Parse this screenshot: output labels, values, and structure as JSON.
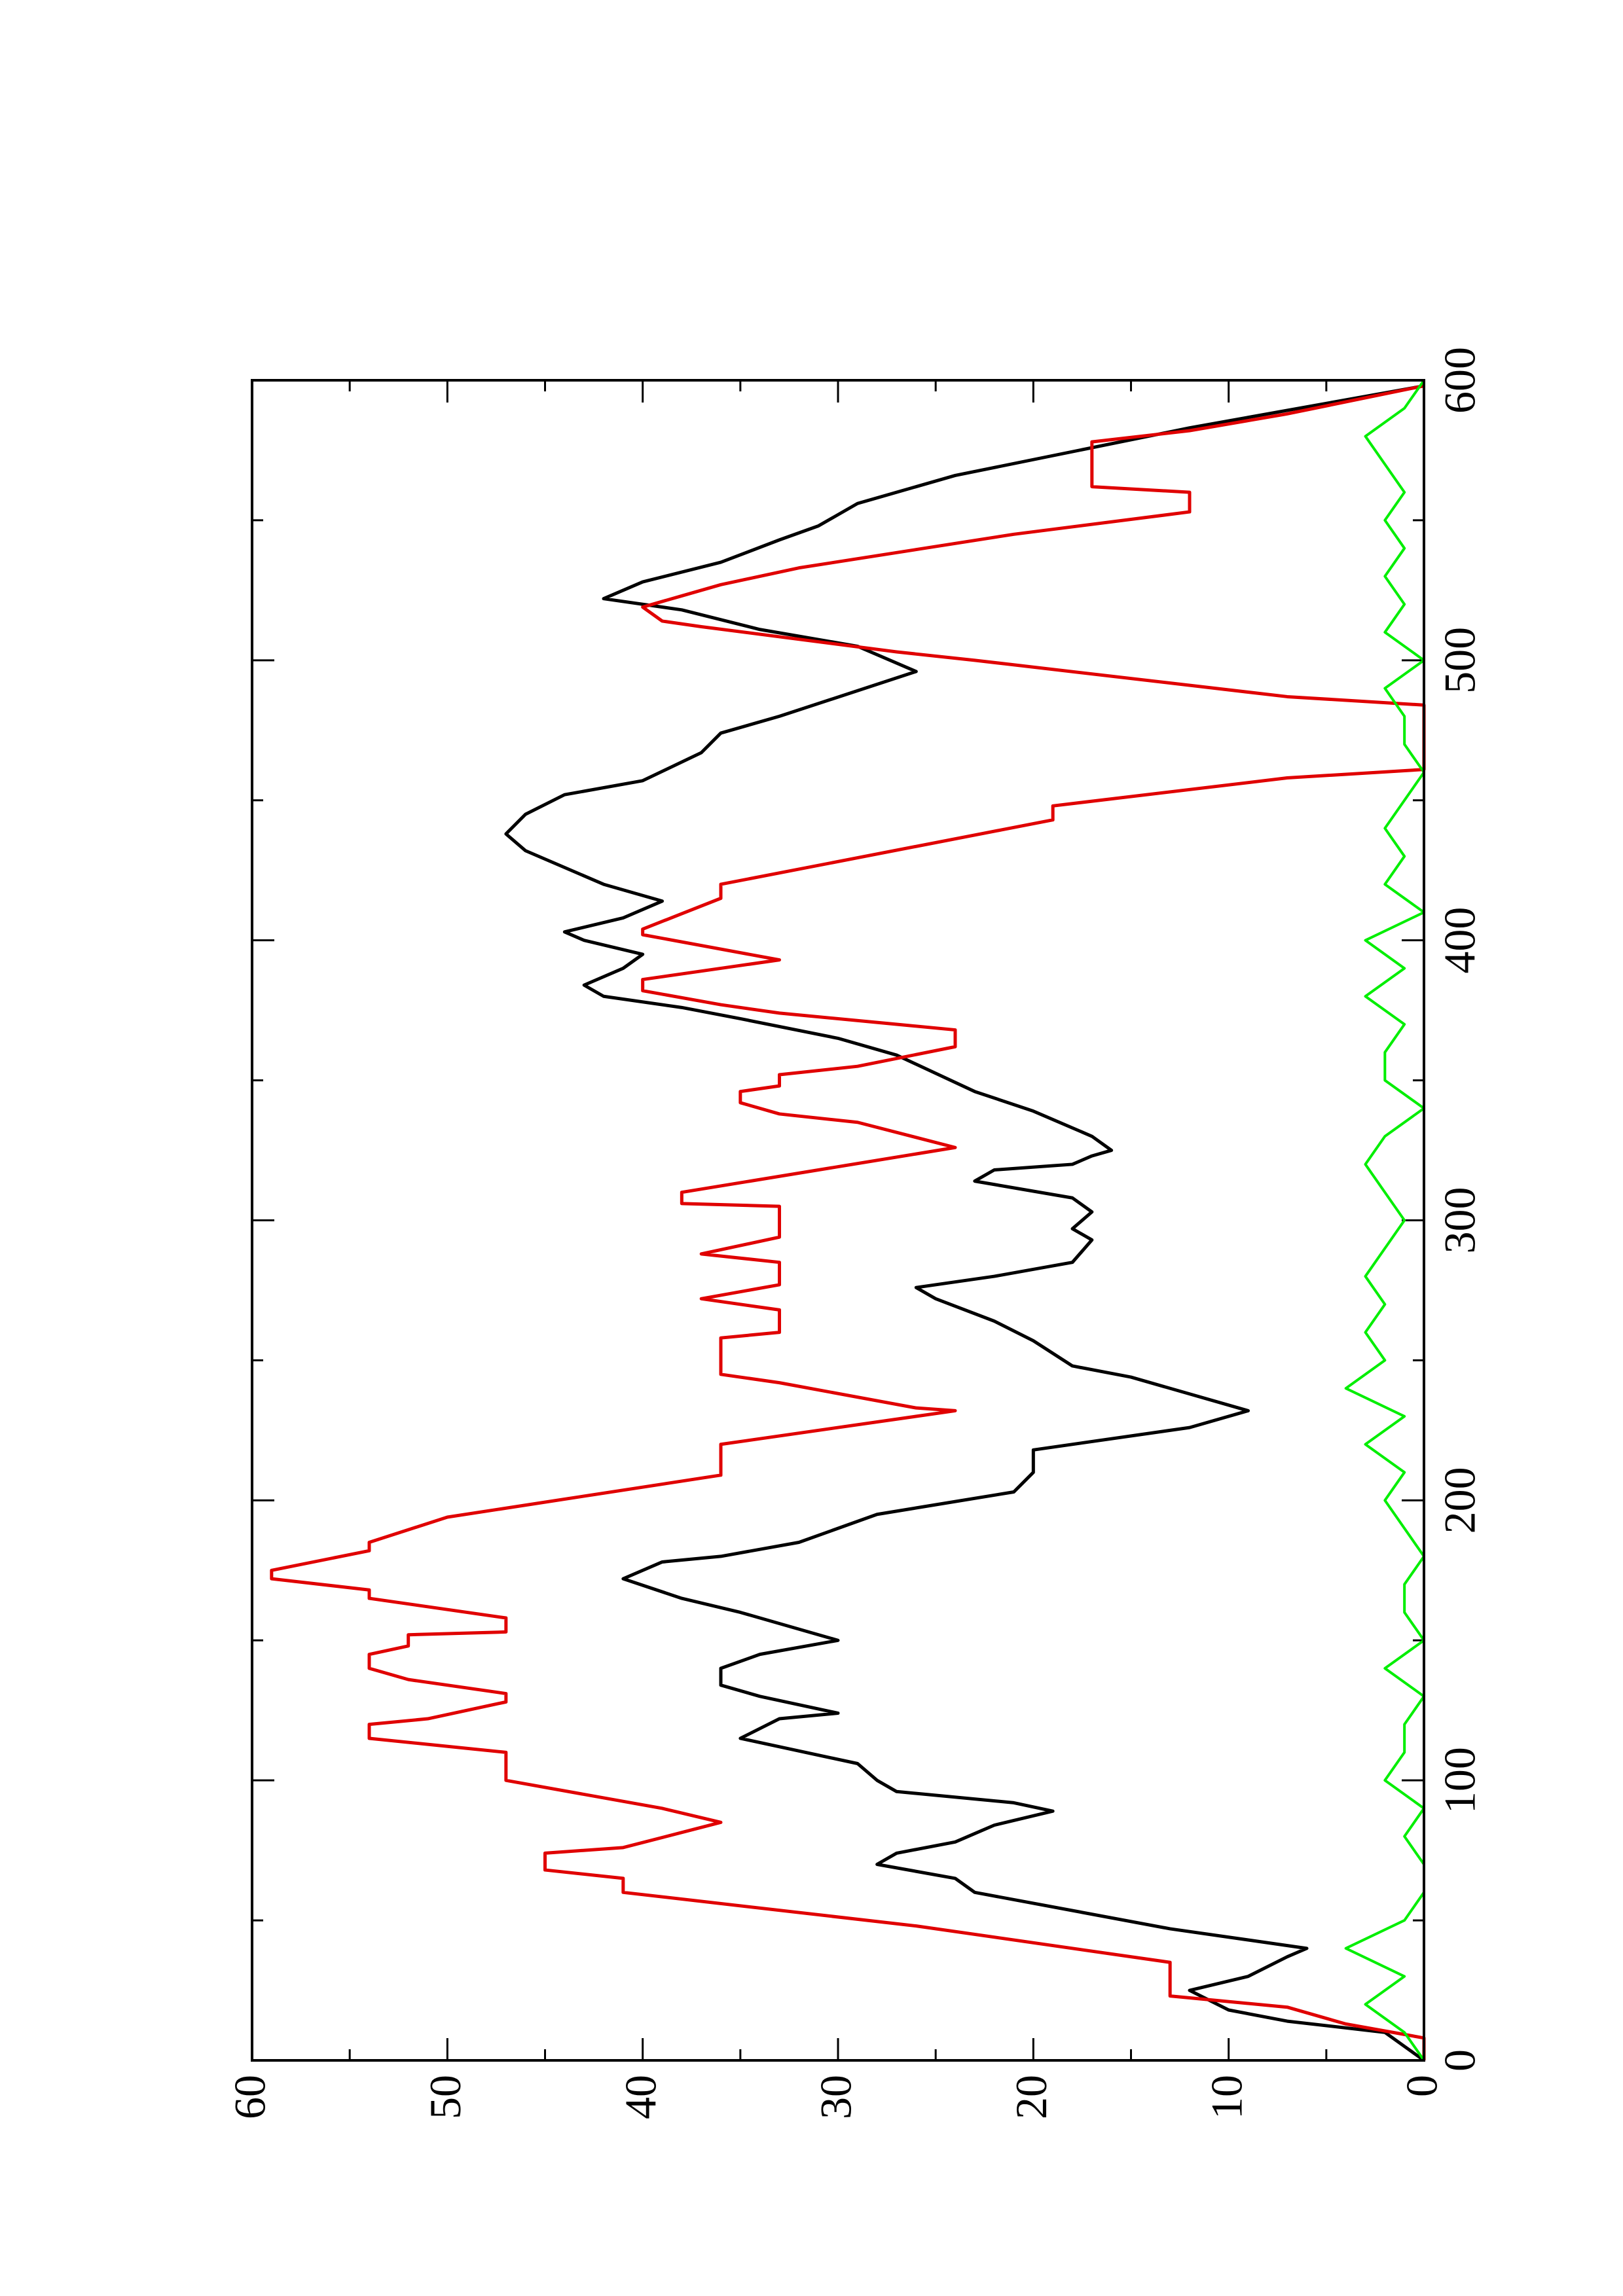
{
  "chart_data": {
    "type": "line",
    "xlim": [
      0,
      600
    ],
    "xticks": [
      0,
      100,
      200,
      300,
      400,
      500,
      600
    ],
    "ylim": [
      0,
      60
    ],
    "yticks": [
      0,
      10,
      20,
      30,
      40,
      50,
      60
    ],
    "series": [
      {
        "color": "#000000",
        "x": [
          0,
          5,
          10,
          14,
          18,
          25,
          30,
          37,
          40,
          43,
          47,
          60,
          65,
          70,
          74,
          78,
          84,
          89,
          92,
          96,
          100,
          106,
          112,
          115,
          122,
          124,
          130,
          134,
          140,
          145,
          150,
          160,
          165,
          172,
          178,
          180,
          185,
          195,
          203,
          210,
          218,
          226,
          232,
          238,
          244,
          248,
          257,
          264,
          272,
          276,
          280,
          285,
          293,
          297,
          303,
          308,
          314,
          318,
          320,
          323,
          325,
          330,
          339,
          346,
          359,
          365,
          372,
          376,
          380,
          384,
          390,
          395,
          400,
          403,
          408,
          414,
          420,
          432,
          438,
          445,
          452,
          457,
          467,
          474,
          480,
          496,
          505,
          511,
          518,
          522,
          528,
          535,
          543,
          548,
          552,
          556,
          566,
          583,
          598
        ],
        "values": [
          0,
          1,
          2,
          7,
          10,
          12,
          9,
          7,
          6,
          9,
          13,
          23,
          24,
          28,
          27,
          24,
          22,
          19,
          21,
          27,
          28,
          29,
          33,
          35,
          33,
          30,
          34,
          36,
          36,
          34,
          30,
          35,
          38,
          41,
          39,
          36,
          32,
          28,
          21,
          20,
          20,
          12,
          9,
          12,
          15,
          18,
          20,
          22,
          25,
          26,
          22,
          18,
          17,
          18,
          17,
          18,
          23,
          22,
          18,
          17,
          16,
          17,
          20,
          23,
          27,
          30,
          35,
          38,
          42,
          43,
          41,
          40,
          43,
          44,
          41,
          39,
          42,
          46,
          47,
          46,
          44,
          40,
          37,
          36,
          33,
          26,
          29,
          34,
          38,
          42,
          40,
          36,
          33,
          31,
          30,
          29,
          24,
          12,
          0
        ]
      },
      {
        "color": "#e00000",
        "x": [
          0,
          8,
          13,
          19,
          23,
          35,
          48,
          60,
          65,
          68,
          74,
          76,
          85,
          90,
          100,
          110,
          115,
          120,
          122,
          128,
          131,
          136,
          140,
          145,
          148,
          152,
          153,
          158,
          165,
          168,
          172,
          175,
          182,
          185,
          194,
          209,
          220,
          232,
          233,
          242,
          245,
          258,
          260,
          268,
          272,
          277,
          285,
          288,
          294,
          305,
          306,
          310,
          326,
          335,
          338,
          342,
          346,
          348,
          352,
          355,
          362,
          368,
          370,
          374,
          377,
          382,
          386,
          390,
          393,
          402,
          404,
          415,
          420,
          443,
          448,
          458,
          461,
          484,
          487,
          500,
          503,
          512,
          514,
          519,
          523,
          527,
          533,
          545,
          553,
          560,
          562,
          578,
          582,
          588,
          598
        ],
        "values": [
          0,
          0,
          4,
          7,
          13,
          13,
          26,
          41,
          41,
          45,
          45,
          41,
          36,
          39,
          47,
          47,
          54,
          54,
          51,
          47,
          47,
          52,
          54,
          54,
          52,
          52,
          47,
          47,
          54,
          54,
          59,
          59,
          54,
          54,
          50,
          36,
          36,
          24,
          26,
          33,
          36,
          36,
          33,
          33,
          37,
          33,
          33,
          37,
          33,
          33,
          38,
          38,
          24,
          29,
          33,
          35,
          35,
          33,
          33,
          29,
          24,
          24,
          27,
          33,
          36,
          40,
          40,
          36,
          33,
          40,
          40,
          36,
          36,
          19,
          19,
          7,
          0,
          0,
          7,
          23,
          27,
          37,
          39,
          40,
          38,
          36,
          32,
          21,
          12,
          12,
          17,
          17,
          12,
          7,
          0
        ]
      },
      {
        "color": "#00ee00",
        "x": [
          0,
          10,
          20,
          30,
          40,
          50,
          60,
          70,
          80,
          90,
          100,
          110,
          120,
          130,
          140,
          150,
          160,
          170,
          180,
          190,
          200,
          210,
          220,
          230,
          240,
          250,
          260,
          270,
          280,
          290,
          300,
          310,
          320,
          330,
          340,
          350,
          360,
          370,
          380,
          390,
          400,
          410,
          420,
          430,
          440,
          450,
          460,
          470,
          480,
          490,
          500,
          510,
          520,
          530,
          540,
          550,
          560,
          570,
          580,
          590,
          600
        ],
        "values": [
          0,
          1,
          3,
          1,
          4,
          1,
          0,
          0,
          1,
          0,
          2,
          1,
          1,
          0,
          2,
          0,
          1,
          1,
          0,
          1,
          2,
          1,
          3,
          1,
          4,
          2,
          3,
          2,
          3,
          2,
          1,
          2,
          3,
          2,
          0,
          2,
          2,
          1,
          3,
          1,
          3,
          0,
          2,
          1,
          2,
          1,
          0,
          1,
          1,
          2,
          0,
          2,
          1,
          2,
          1,
          2,
          1,
          2,
          3,
          1,
          0
        ]
      }
    ]
  }
}
